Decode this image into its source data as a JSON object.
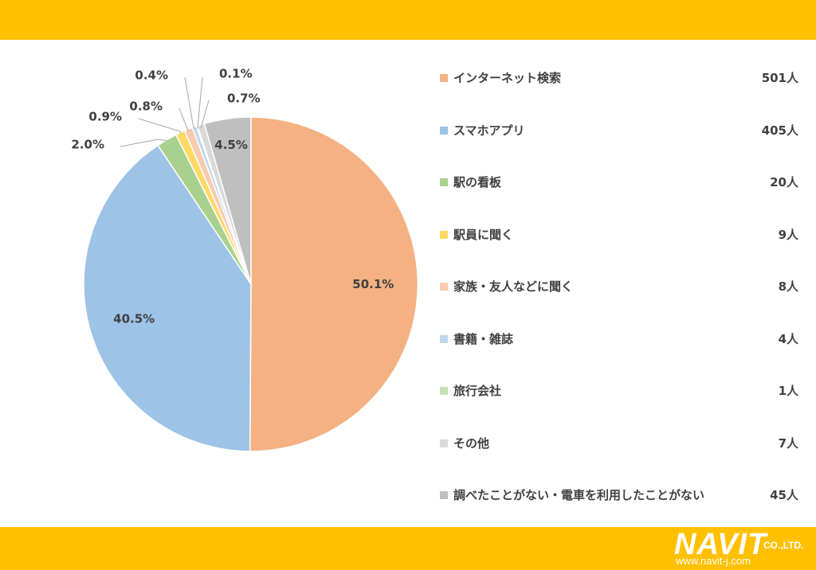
{
  "chart_data": {
    "type": "pie",
    "title": "",
    "categories": [
      "インターネット検索",
      "スマホアプリ",
      "駅の看板",
      "駅員に聞く",
      "家族・友人などに聞く",
      "書籍・雑誌",
      "旅行会社",
      "その他",
      "調べたことがない・電車を利用したことがない"
    ],
    "values": [
      501,
      405,
      20,
      9,
      8,
      4,
      1,
      7,
      45
    ],
    "value_labels": [
      "501人",
      "405人",
      "20人",
      "9人",
      "8人",
      "4人",
      "1人",
      "7人",
      "45人"
    ],
    "percent_labels": [
      "50.1%",
      "40.5%",
      "2.0%",
      "0.9%",
      "0.8%",
      "0.4%",
      "0.1%",
      "0.7%",
      "4.5%"
    ],
    "colors": [
      "#f4b183",
      "#9dc3e6",
      "#a9d18e",
      "#ffd966",
      "#f8cbad",
      "#bdd7ee",
      "#c5e0b4",
      "#d9d9d9",
      "#bfbfbf"
    ],
    "start_angle": "12 o'clock",
    "direction": "clockwise",
    "legend_position": "right"
  },
  "logo": {
    "name": "NAVIT",
    "suffix": "CO.,LTD.",
    "url": "www.navit-j.com"
  }
}
